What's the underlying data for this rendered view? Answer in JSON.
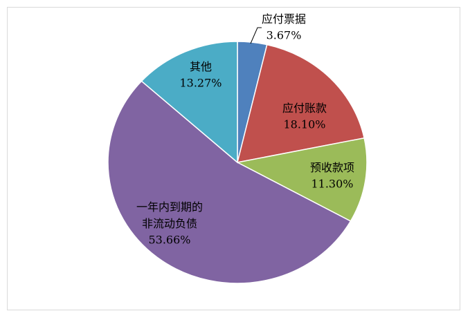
{
  "chart_data": {
    "type": "pie",
    "categories": [
      "应付票据",
      "应付账款",
      "预收款项",
      "一年内到期的\n非流动负债",
      "其他"
    ],
    "values": [
      3.67,
      18.1,
      11.3,
      53.66,
      13.27
    ],
    "value_labels": [
      "3.67%",
      "18.10%",
      "11.30%",
      "53.66%",
      "13.27%"
    ],
    "colors": [
      "#4f81bd",
      "#c0504d",
      "#9bbb59",
      "#8064a2",
      "#4bacc6"
    ]
  }
}
